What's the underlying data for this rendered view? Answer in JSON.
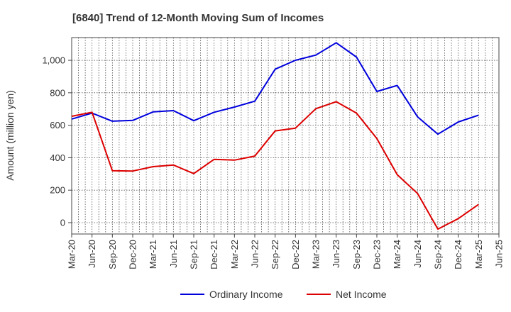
{
  "chart_data": {
    "type": "line",
    "title": "[6840]  Trend of 12-Month Moving Sum of Incomes",
    "xlabel": "",
    "ylabel": "Amount (million yen)",
    "ylim": [
      -70,
      1140
    ],
    "y_ticks": [
      0,
      200,
      400,
      600,
      800,
      1000
    ],
    "y_tick_labels": [
      "0",
      "200",
      "400",
      "600",
      "800",
      "1,000"
    ],
    "x_tick_labels": [
      "Mar-20",
      "Jun-20",
      "Sep-20",
      "Dec-20",
      "Mar-21",
      "Jun-21",
      "Sep-21",
      "Dec-21",
      "Mar-22",
      "Jun-22",
      "Sep-22",
      "Dec-22",
      "Mar-23",
      "Jun-23",
      "Sep-23",
      "Dec-23",
      "Mar-24",
      "Jun-24",
      "Sep-24",
      "Dec-24",
      "Mar-25",
      "Jun-25"
    ],
    "grid": true,
    "legend_position": "bottom-center",
    "series": [
      {
        "name": "Ordinary Income",
        "color": "#0000dd",
        "values": [
          638,
          675,
          625,
          630,
          682,
          690,
          628,
          680,
          712,
          748,
          945,
          1000,
          1032,
          1108,
          1020,
          808,
          845,
          652,
          545,
          620,
          662
        ]
      },
      {
        "name": "Net Income",
        "color": "#dd0000",
        "values": [
          655,
          680,
          320,
          318,
          345,
          355,
          302,
          390,
          385,
          410,
          565,
          582,
          702,
          745,
          675,
          518,
          295,
          180,
          -40,
          25,
          112
        ]
      }
    ]
  }
}
